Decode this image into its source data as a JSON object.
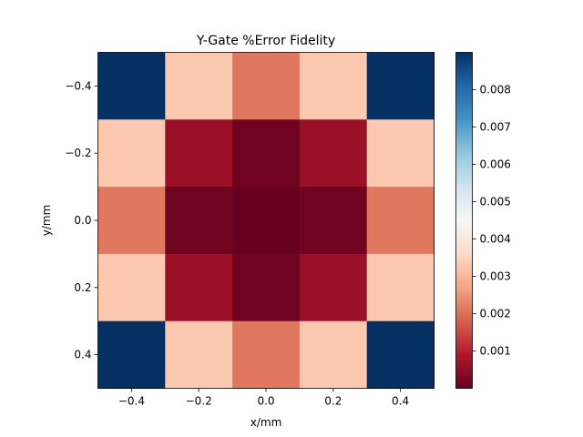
{
  "chart_data": {
    "type": "heatmap",
    "title": "Y-Gate %Error Fidelity",
    "xlabel": "x/mm",
    "ylabel": "y/mm",
    "x": [
      -0.4,
      -0.2,
      0.0,
      0.2,
      0.4
    ],
    "y": [
      -0.4,
      -0.2,
      0.0,
      0.2,
      0.4
    ],
    "xlim": [
      -0.5,
      0.5
    ],
    "ylim": [
      0.5,
      -0.5
    ],
    "xticks": [
      "−0.4",
      "−0.2",
      "0.0",
      "0.2",
      "0.4"
    ],
    "yticks": [
      "−0.4",
      "−0.2",
      "0.0",
      "0.2",
      "0.4"
    ],
    "values": [
      [
        0.009,
        0.0033,
        0.0021,
        0.0033,
        0.009
      ],
      [
        0.0033,
        0.0006,
        0.0001,
        0.0006,
        0.0033
      ],
      [
        0.0021,
        0.0001,
        0.0,
        0.0001,
        0.0021
      ],
      [
        0.0033,
        0.0006,
        0.0001,
        0.0006,
        0.0033
      ],
      [
        0.009,
        0.0033,
        0.0021,
        0.0033,
        0.009
      ]
    ],
    "colormap": "RdBu",
    "colorbar": {
      "range": [
        0.0,
        0.009
      ],
      "ticks": [
        0.001,
        0.002,
        0.003,
        0.004,
        0.005,
        0.006,
        0.007,
        0.008
      ],
      "tick_labels": [
        "0.001",
        "0.002",
        "0.003",
        "0.004",
        "0.005",
        "0.006",
        "0.007",
        "0.008"
      ]
    },
    "grid": false,
    "legend": "none"
  }
}
